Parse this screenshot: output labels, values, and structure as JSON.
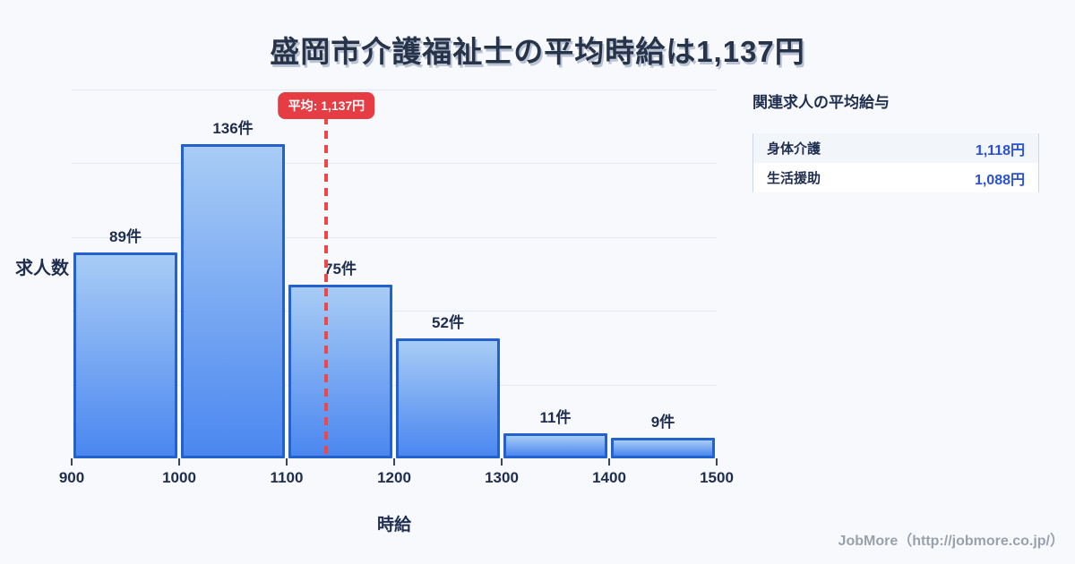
{
  "title": "盛岡市介護福祉士の平均時給は1,137円",
  "chart_data": {
    "type": "bar",
    "histogram": true,
    "bin_edges": [
      900,
      1000,
      1100,
      1200,
      1300,
      1400,
      1500
    ],
    "x_tick_labels": [
      "900",
      "1000",
      "1100",
      "1200",
      "1300",
      "1400",
      "1500"
    ],
    "values": [
      89,
      136,
      75,
      52,
      11,
      9
    ],
    "bar_labels": [
      "89件",
      "136件",
      "75件",
      "52件",
      "11件",
      "9件"
    ],
    "average": 1137,
    "average_label": "平均: 1,137円",
    "xlabel": "時給",
    "ylabel": "求人数",
    "xlim": [
      900,
      1500
    ],
    "grid": "horizontal",
    "legend": "none",
    "colors": {
      "bar_fill_top": "#a8ccf5",
      "bar_fill_bottom": "#4b87f0",
      "bar_border": "#2362cb",
      "average_line": "#ee4747",
      "badge_bg": "#e63c44",
      "text_dark": "#1f2e4e"
    }
  },
  "panel": {
    "title": "関連求人の平均給与",
    "rows": [
      {
        "label": "身体介護",
        "value": "1,118円"
      },
      {
        "label": "生活援助",
        "value": "1,088円"
      }
    ]
  },
  "footer": {
    "credit": "JobMore（http://jobmore.co.jp/）"
  }
}
